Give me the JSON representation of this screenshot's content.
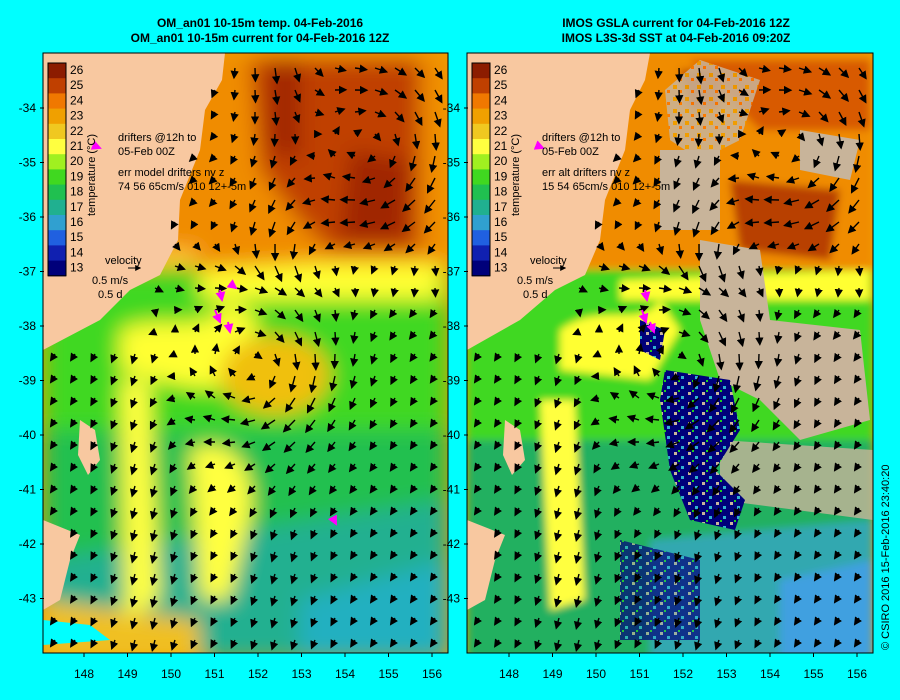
{
  "colors": {
    "background": "#00ffff",
    "land": "#f8c8a0",
    "missing": "#c8b49a",
    "drifter": "#ff00ff"
  },
  "left_panel": {
    "title_line1": "OM_an01 10-15m temp. 04-Feb-2016",
    "title_line2": "OM_an01 10-15m current for 04-Feb-2016 12Z",
    "drifters_line1": "drifters @12h to",
    "drifters_line2": "05-Feb 00Z",
    "err_line1": "err model drifters nv z",
    "err_line2": "74 56 65cm/s 010 12+-5m"
  },
  "right_panel": {
    "title_line1": "IMOS GSLA current for 04-Feb-2016 12Z",
    "title_line2": "IMOS L3S-3d SST at 04-Feb-2016 09:20Z",
    "drifters_line1": "drifters @12h to",
    "drifters_line2": "05-Feb 00Z",
    "err_line1": "err alt drifters nv z",
    "err_line2": "15 54 65cm/s 010 12+-5m"
  },
  "legend": {
    "velocity_label": "velocity",
    "speed_label": "0.5 m/s",
    "time_label": "0.5 d",
    "colorbar_label": "temperature (°C)",
    "colorbar_ticks": [
      "26",
      "25",
      "24",
      "23",
      "22",
      "21",
      "20",
      "19",
      "18",
      "17",
      "16",
      "15",
      "14",
      "13"
    ]
  },
  "axes": {
    "x_ticks": [
      "148",
      "149",
      "150",
      "151",
      "152",
      "153",
      "154",
      "155",
      "156"
    ],
    "y_ticks": [
      "-34",
      "-35",
      "-36",
      "-37",
      "-38",
      "-39",
      "-40",
      "-41",
      "-42",
      "-43"
    ]
  },
  "credit": "© CSIRO 2016  15-Feb-2016 23:40:20"
}
